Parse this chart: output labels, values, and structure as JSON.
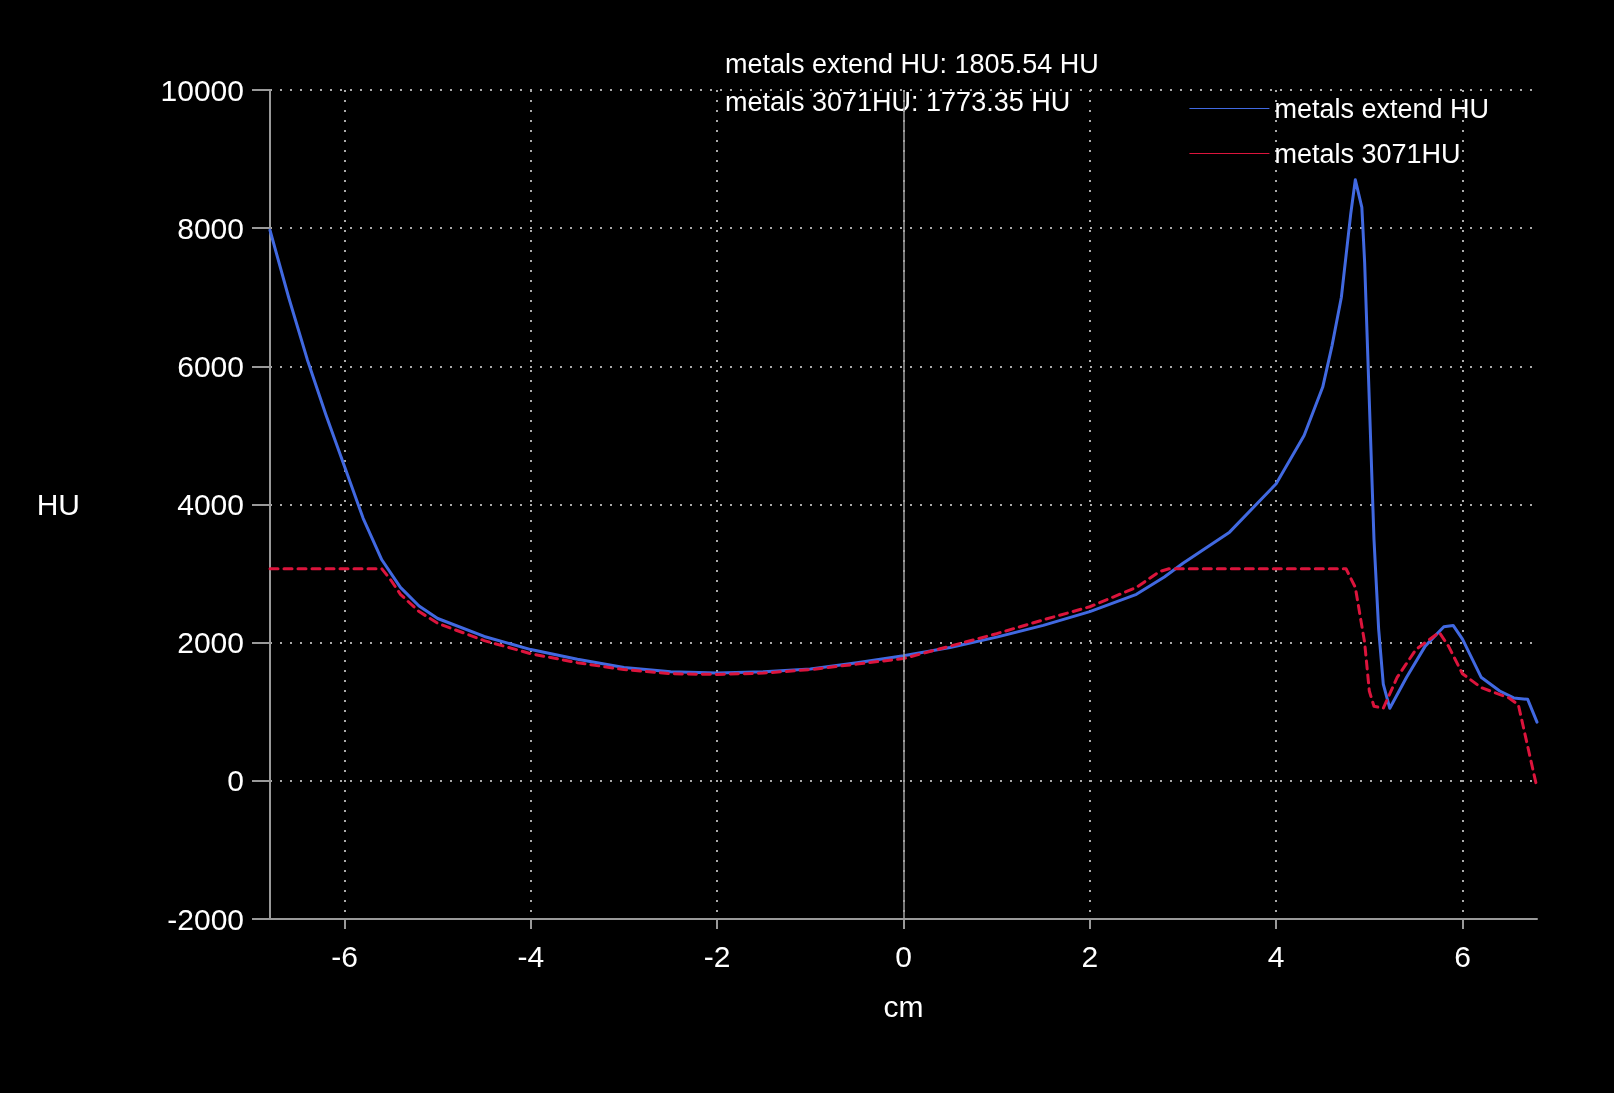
{
  "chart_data": {
    "type": "line",
    "xlabel": "cm",
    "ylabel": "HU",
    "annotations": [
      "metals extend HU: 1805.54 HU",
      "metals 3071HU: 1773.35 HU"
    ],
    "xlim": [
      -6.8,
      6.8
    ],
    "xticks": [
      -6,
      -4,
      -2,
      0,
      2,
      4,
      6
    ],
    "ylim": [
      -2000,
      10000
    ],
    "yticks": [
      -2000,
      0,
      2000,
      4000,
      6000,
      8000,
      10000
    ],
    "grid": true,
    "legend": "top right",
    "marker": "none",
    "ref_lines": [
      {
        "axis": "x",
        "value": 0,
        "color": "#a0a0a0"
      }
    ],
    "series": [
      {
        "name": "metals extend HU",
        "color": "#4169e1",
        "line_style": "solid",
        "x": [
          -6.8,
          -6.6,
          -6.4,
          -6.2,
          -6.0,
          -5.8,
          -5.6,
          -5.4,
          -5.2,
          -5.0,
          -4.5,
          -4.0,
          -3.5,
          -3.0,
          -2.5,
          -2.0,
          -1.5,
          -1.0,
          -0.5,
          0,
          0.5,
          1.0,
          1.5,
          2.0,
          2.5,
          2.8,
          3.0,
          3.5,
          4.0,
          4.3,
          4.5,
          4.6,
          4.7,
          4.8,
          4.85,
          4.92,
          4.95,
          5.0,
          5.05,
          5.1,
          5.15,
          5.22,
          5.4,
          5.6,
          5.8,
          5.9,
          6.0,
          6.2,
          6.4,
          6.55,
          6.7,
          6.8
        ],
        "values": [
          7970,
          7000,
          6100,
          5300,
          4550,
          3800,
          3200,
          2800,
          2530,
          2350,
          2090,
          1900,
          1760,
          1640,
          1580,
          1560,
          1580,
          1620,
          1710,
          1810,
          1930,
          2080,
          2250,
          2450,
          2700,
          2950,
          3150,
          3600,
          4300,
          5000,
          5700,
          6300,
          7000,
          8200,
          8700,
          8300,
          7500,
          5500,
          3500,
          2200,
          1400,
          1050,
          1500,
          1950,
          2230,
          2250,
          2050,
          1500,
          1300,
          1200,
          1180,
          850
        ]
      },
      {
        "name": "metals 3071HU",
        "color": "#dc143c",
        "line_style": "dashed",
        "x": [
          -6.8,
          -5.6,
          -5.5,
          -5.4,
          -5.2,
          -5.0,
          -4.5,
          -4.0,
          -3.5,
          -3.0,
          -2.5,
          -2.0,
          -1.5,
          -1.0,
          -0.5,
          0,
          0.5,
          1.0,
          1.5,
          2.0,
          2.5,
          2.75,
          2.85,
          4.75,
          4.85,
          4.95,
          5.0,
          5.05,
          5.15,
          5.3,
          5.5,
          5.75,
          5.85,
          6.0,
          6.2,
          6.5,
          6.6,
          6.8
        ],
        "values": [
          3070,
          3070,
          2900,
          2700,
          2450,
          2280,
          2030,
          1840,
          1710,
          1610,
          1550,
          1540,
          1560,
          1610,
          1690,
          1770,
          1950,
          2130,
          2330,
          2520,
          2800,
          3030,
          3070,
          3070,
          2800,
          2000,
          1300,
          1080,
          1050,
          1500,
          1900,
          2150,
          1950,
          1550,
          1350,
          1200,
          1100,
          -100
        ]
      }
    ]
  }
}
